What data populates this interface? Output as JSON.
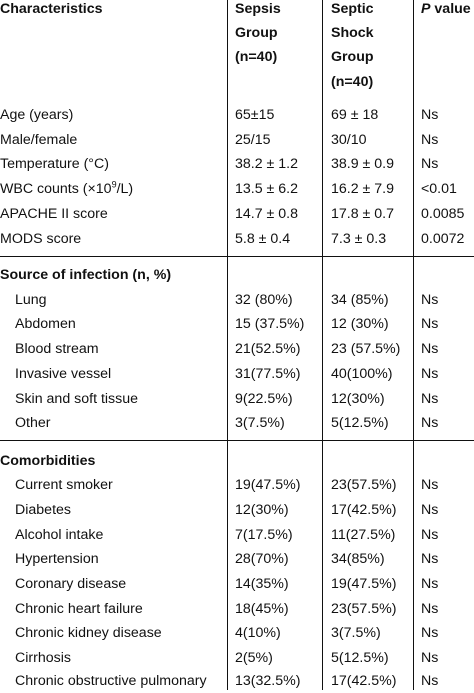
{
  "header": {
    "characteristics": "Characteristics",
    "sepsis": [
      "Sepsis",
      "Group",
      "(n=40)"
    ],
    "shock": [
      "Septic",
      "Shock",
      "Group",
      "(n=40)"
    ],
    "pvalue_p": "P",
    "pvalue_rest": " value"
  },
  "rows_general": [
    {
      "label": "Age (years)",
      "sepsis": "65±15",
      "shock": "69 ± 18",
      "p": "Ns"
    },
    {
      "label": "Male/female",
      "sepsis": "25/15",
      "shock": "30/10",
      "p": "Ns"
    },
    {
      "label": "Temperature (°C)",
      "sepsis": "38.2 ± 1.2",
      "shock": "38.9 ± 0.9",
      "p": "Ns"
    },
    {
      "label_pre": "WBC counts (×10",
      "label_sup": "9",
      "label_post": "/L)",
      "sepsis": "13.5 ± 6.2",
      "shock": "16.2 ± 7.9",
      "p": "<0.01"
    },
    {
      "label": "APACHE II score",
      "sepsis": "14.7 ± 0.8",
      "shock": "17.8 ± 0.7",
      "p": "0.0085"
    },
    {
      "label": "MODS score",
      "sepsis": "5.8 ± 0.4",
      "shock": "7.3 ± 0.3",
      "p": "0.0072"
    }
  ],
  "section_infection": {
    "title": "Source of infection (n, %)",
    "rows": [
      {
        "label": "Lung",
        "sepsis": "32 (80%)",
        "shock": "34 (85%)",
        "p": "Ns"
      },
      {
        "label": "Abdomen",
        "sepsis": "15 (37.5%)",
        "shock": "12 (30%)",
        "p": "Ns"
      },
      {
        "label": "Blood stream",
        "sepsis": "21(52.5%)",
        "shock": "23 (57.5%)",
        "p": "Ns"
      },
      {
        "label": "Invasive vessel",
        "sepsis": "31(77.5%)",
        "shock": "40(100%)",
        "p": "Ns"
      },
      {
        "label": "Skin and soft tissue",
        "sepsis": "9(22.5%)",
        "shock": "12(30%)",
        "p": "Ns"
      },
      {
        "label": "Other",
        "sepsis": "3(7.5%)",
        "shock": "5(12.5%)",
        "p": "Ns"
      }
    ]
  },
  "section_comorbid": {
    "title": "Comorbidities",
    "rows": [
      {
        "label": "Current smoker",
        "sepsis": "19(47.5%)",
        "shock": "23(57.5%)",
        "p": "Ns"
      },
      {
        "label": "Diabetes",
        "sepsis": "12(30%)",
        "shock": "17(42.5%)",
        "p": "Ns"
      },
      {
        "label": "Alcohol intake",
        "sepsis": "7(17.5%)",
        "shock": "11(27.5%)",
        "p": "Ns"
      },
      {
        "label": "Hypertension",
        "sepsis": "28(70%)",
        "shock": "34(85%)",
        "p": "Ns"
      },
      {
        "label": "Coronary disease",
        "sepsis": "14(35%)",
        "shock": "19(47.5%)",
        "p": "Ns"
      },
      {
        "label": "Chronic heart failure",
        "sepsis": "18(45%)",
        "shock": "23(57.5%)",
        "p": "Ns"
      },
      {
        "label": "Chronic kidney disease",
        "sepsis": "4(10%)",
        "shock": "3(7.5%)",
        "p": "Ns"
      },
      {
        "label": "Cirrhosis",
        "sepsis": "2(5%)",
        "shock": "5(12.5%)",
        "p": "Ns"
      },
      {
        "label": "Chronic obstructive pulmonary",
        "sepsis": "13(32.5%)",
        "shock": "17(42.5%)",
        "p": "Ns"
      }
    ]
  }
}
